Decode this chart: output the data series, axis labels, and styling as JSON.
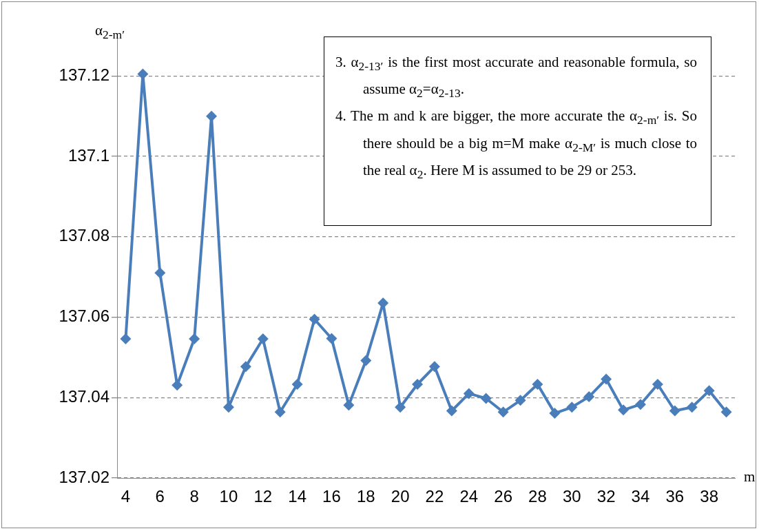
{
  "chart_data": {
    "type": "line",
    "xlabel": "m",
    "ylabel": "α$_{2-m′}$",
    "categories": [
      "4",
      null,
      "6",
      null,
      "8",
      null,
      "10",
      null,
      "12",
      null,
      "14",
      null,
      "16",
      null,
      "18",
      null,
      "20",
      null,
      "22",
      null,
      "24",
      null,
      "26",
      null,
      "28",
      null,
      "30",
      null,
      "32",
      null,
      "34",
      null,
      "36",
      null,
      "38",
      null
    ],
    "series": [
      {
        "color": "#4a7ebb",
        "values": [
          137.0546,
          137.1205,
          137.071,
          137.0431,
          137.0546,
          137.11,
          137.0376,
          137.0477,
          137.0546,
          137.0364,
          137.0433,
          137.0595,
          137.0547,
          137.0381,
          137.0492,
          137.0635,
          137.0376,
          137.0433,
          137.0477,
          137.0367,
          137.041,
          137.0398,
          137.0364,
          137.0393,
          137.0433,
          137.0361,
          137.0376,
          137.0402,
          137.0446,
          137.0369,
          137.0383,
          137.0433,
          137.0367,
          137.0376,
          137.0417,
          137.0364
        ]
      }
    ],
    "ylim": [
      137.02,
      137.13
    ],
    "yticks": [
      137.02,
      137.04,
      137.06,
      137.08,
      137.1,
      137.12
    ],
    "grid": "y",
    "legend": false,
    "marker": "diamond",
    "line_style": "solid",
    "annotations": [
      "3.  α$_{2-13′}$ is the first most accurate and reasonable formula, so assume α$_{2}$=α$_{2-13}$.",
      "4.  The m and k are bigger, the more accurate the α$_{2-m′}$ is. So there should be a big m=M make α$_{2-M′}$ is much close to the real α$_{2}$. Here M is assumed to be 29 or 253."
    ]
  }
}
